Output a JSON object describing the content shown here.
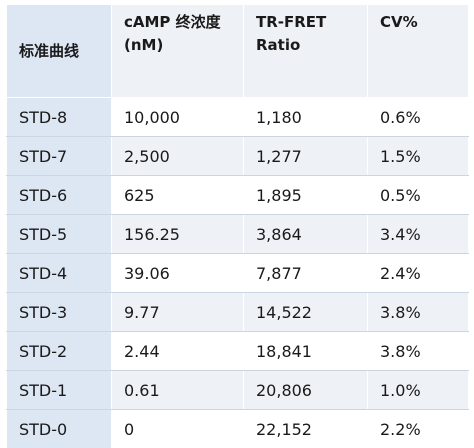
{
  "table": {
    "headers": {
      "curve": "标准曲线",
      "camp_line1": "cAMP 终浓度",
      "camp_line2": "(nM)",
      "ratio_line1": "TR-FRET",
      "ratio_line2": "Ratio",
      "cv": "CV%"
    },
    "rows": [
      {
        "curve": "STD-8",
        "camp": "10,000",
        "ratio": "1,180",
        "cv": "0.6%"
      },
      {
        "curve": "STD-7",
        "camp": "2,500",
        "ratio": "1,277",
        "cv": "1.5%"
      },
      {
        "curve": "STD-6",
        "camp": "625",
        "ratio": "1,895",
        "cv": "0.5%"
      },
      {
        "curve": "STD-5",
        "camp": "156.25",
        "ratio": "3,864",
        "cv": "3.4%"
      },
      {
        "curve": "STD-4",
        "camp": "39.06",
        "ratio": "7,877",
        "cv": "2.4%"
      },
      {
        "curve": "STD-3",
        "camp": "9.77",
        "ratio": "14,522",
        "cv": "3.8%"
      },
      {
        "curve": "STD-2",
        "camp": "2.44",
        "ratio": "18,841",
        "cv": "3.8%"
      },
      {
        "curve": "STD-1",
        "camp": "0.61",
        "ratio": "20,806",
        "cv": "1.0%"
      },
      {
        "curve": "STD-0",
        "camp": "0",
        "ratio": "22,152",
        "cv": "2.2%"
      }
    ]
  },
  "colors": {
    "header_bg": "#eef1f6",
    "first_col_bg": "#dde6f3",
    "bottom_rule": "#1f5aa8"
  }
}
